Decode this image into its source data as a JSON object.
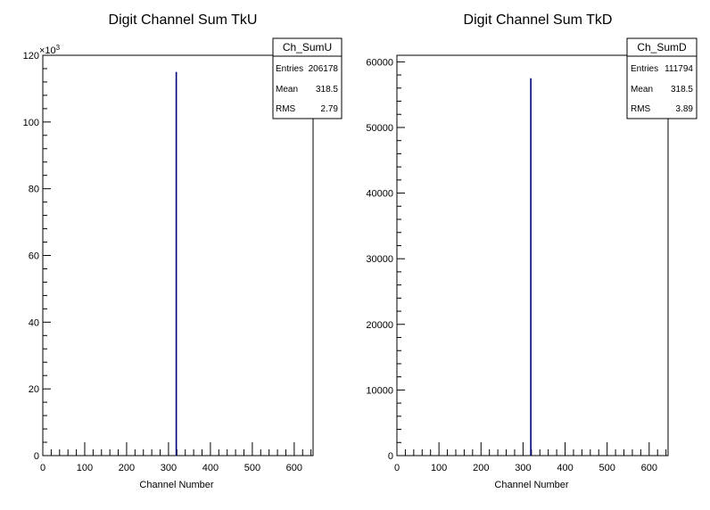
{
  "chart_data": [
    {
      "type": "bar",
      "title": "Digit Channel Sum TkU",
      "xlabel": "Channel Number",
      "ylabel": "",
      "xlim": [
        0,
        645
      ],
      "ylim": [
        0,
        120000
      ],
      "y_exponent_label": "×10",
      "y_exponent_power": "3",
      "x_ticks": [
        "0",
        "100",
        "200",
        "300",
        "400",
        "500",
        "600"
      ],
      "y_ticks": [
        "0",
        "20",
        "40",
        "60",
        "80",
        "100",
        "120"
      ],
      "y_tick_values": [
        0,
        20000,
        40000,
        60000,
        80000,
        100000,
        120000
      ],
      "x": [
        318.5
      ],
      "values": [
        115000
      ],
      "bin_width": 1,
      "line_color": "#000080",
      "stats_box": {
        "name": "Ch_SumU",
        "rows": [
          {
            "label": "Entries",
            "value": "206178"
          },
          {
            "label": "Mean",
            "value": "318.5"
          },
          {
            "label": "RMS",
            "value": "2.79"
          }
        ]
      },
      "grid": false
    },
    {
      "type": "bar",
      "title": "Digit Channel Sum TkD",
      "xlabel": "Channel Number",
      "ylabel": "",
      "xlim": [
        0,
        645
      ],
      "ylim": [
        0,
        61000
      ],
      "y_exponent_label": "",
      "y_exponent_power": "",
      "x_ticks": [
        "0",
        "100",
        "200",
        "300",
        "400",
        "500",
        "600"
      ],
      "y_ticks": [
        "0",
        "10000",
        "20000",
        "30000",
        "40000",
        "50000",
        "60000"
      ],
      "y_tick_values": [
        0,
        10000,
        20000,
        30000,
        40000,
        50000,
        60000
      ],
      "x": [
        318.5
      ],
      "values": [
        57500
      ],
      "bin_width": 1,
      "line_color": "#000080",
      "stats_box": {
        "name": "Ch_SumD",
        "rows": [
          {
            "label": "Entries",
            "value": "111794"
          },
          {
            "label": "Mean",
            "value": "318.5"
          },
          {
            "label": "RMS",
            "value": "3.89"
          }
        ]
      },
      "grid": false
    }
  ]
}
